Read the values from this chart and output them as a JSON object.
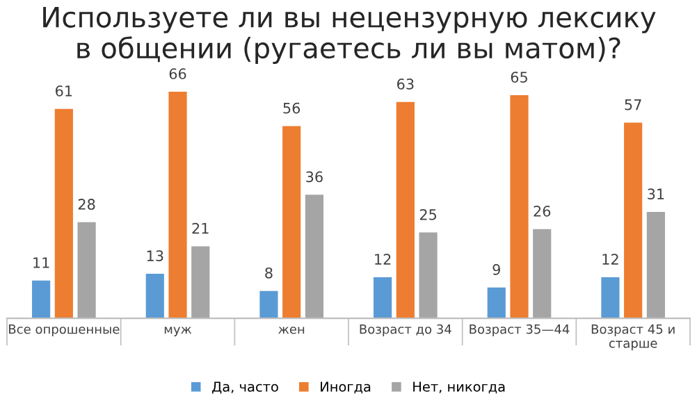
{
  "chart_data": {
    "type": "bar",
    "title": "Используете ли вы нецензурную лексику\nв общении (ругаетесь ли вы матом)?",
    "categories": [
      "Все опрошенные",
      "муж",
      "жен",
      "Возраст до 34",
      "Возраст 35—44",
      "Возраст 45 и\nстарше"
    ],
    "series": [
      {
        "name": "Да, часто",
        "color": "#5b9bd5",
        "values": [
          11,
          13,
          8,
          12,
          9,
          12
        ]
      },
      {
        "name": "Иногда",
        "color": "#ed7d31",
        "values": [
          61,
          66,
          56,
          63,
          65,
          57
        ]
      },
      {
        "name": "Нет, никогда",
        "color": "#a5a5a5",
        "values": [
          28,
          21,
          36,
          25,
          26,
          31
        ]
      }
    ],
    "data_labels": true,
    "legend": "bottom",
    "grid": false
  }
}
